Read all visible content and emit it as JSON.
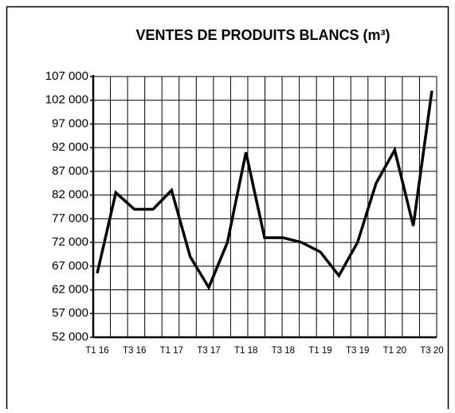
{
  "chart_data": {
    "type": "line",
    "title": "VENTES DE PRODUITS BLANCS (m³)",
    "categories": [
      "T1 16",
      null,
      "T3 16",
      null,
      "T1 17",
      null,
      "T3 17",
      null,
      "T1 18",
      null,
      "T3 18",
      null,
      "T1 19",
      null,
      "T3 19",
      null,
      "T1 20",
      null,
      "T3 20"
    ],
    "series": [
      {
        "name": "Ventes",
        "color": "#000000",
        "values": [
          65500,
          82500,
          79000,
          79000,
          83000,
          69000,
          62500,
          72000,
          91000,
          73000,
          73000,
          72000,
          70000,
          65000,
          72000,
          84500,
          91500,
          75500,
          104000
        ]
      }
    ],
    "ylim": [
      52000,
      107000
    ],
    "yticks": [
      {
        "value": 52000,
        "label": "52 000"
      },
      {
        "value": 57000,
        "label": "57 000"
      },
      {
        "value": 62000,
        "label": "62 000"
      },
      {
        "value": 67000,
        "label": "67 000"
      },
      {
        "value": 72000,
        "label": "72 000"
      },
      {
        "value": 77000,
        "label": "77 000"
      },
      {
        "value": 82000,
        "label": "82 000"
      },
      {
        "value": 87000,
        "label": "87 000"
      },
      {
        "value": 92000,
        "label": "92 000"
      },
      {
        "value": 97000,
        "label": "97 000"
      },
      {
        "value": 102000,
        "label": "102 000"
      },
      {
        "value": 107000,
        "label": "107 000"
      }
    ],
    "grid": true
  }
}
